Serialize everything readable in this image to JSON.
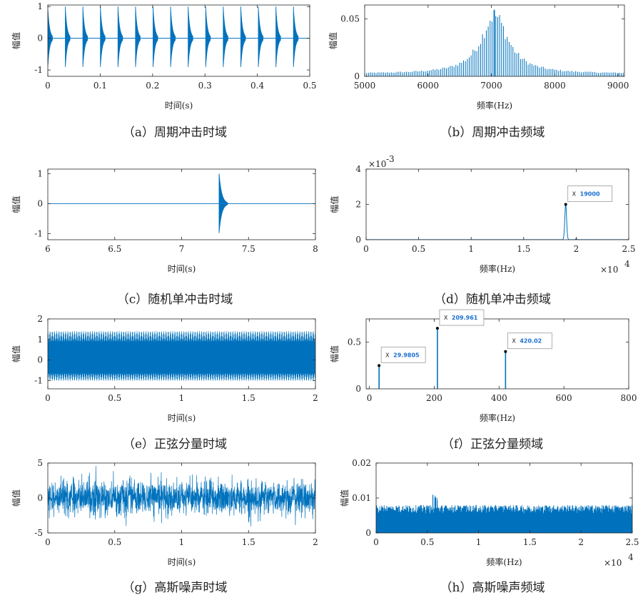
{
  "colors": {
    "series": "#0072BD",
    "axis": "#262626",
    "datatip_text": "#1a6fd0"
  },
  "chart_data": [
    {
      "id": "a",
      "type": "line",
      "caption": "（a）周期冲击时域",
      "xlabel": "时间(s)",
      "ylabel": "幅值",
      "xlim": [
        0,
        0.5
      ],
      "ylim": [
        -1.2,
        1.05
      ],
      "xticks": [
        0,
        0.1,
        0.2,
        0.3,
        0.4,
        0.5
      ],
      "xtick_labels": [
        "0",
        "0.1",
        "0.2",
        "0.3",
        "0.4",
        "0.5"
      ],
      "yticks": [
        -1,
        0,
        1
      ],
      "ytick_labels": [
        "-1",
        "0",
        "1"
      ],
      "signal": {
        "kind": "periodic-impulse",
        "period": 0.0335,
        "first": 0.0,
        "amplitude": 0.95,
        "decay": 200
      }
    },
    {
      "id": "b",
      "type": "bar",
      "caption": "（b）周期冲击频域",
      "xlabel": "频率(Hz)",
      "ylabel": "幅值",
      "xlim": [
        5000,
        9100
      ],
      "ylim": [
        0,
        0.062
      ],
      "xticks": [
        5000,
        6000,
        7000,
        8000,
        9000
      ],
      "xtick_labels": [
        "5000",
        "6000",
        "7000",
        "8000",
        "9000"
      ],
      "yticks": [
        0,
        0.05
      ],
      "ytick_labels": [
        "0",
        "0.05"
      ],
      "signal": {
        "kind": "harmonic-comb",
        "center": 7050,
        "spacing": 30,
        "peak": 0.058,
        "width": 380,
        "floor": 0.0025
      }
    },
    {
      "id": "c",
      "type": "line",
      "caption": "（c）随机单冲击时域",
      "xlabel": "时间(s)",
      "ylabel": "幅值",
      "xlim": [
        6,
        8
      ],
      "ylim": [
        -1.2,
        1.15
      ],
      "xticks": [
        6,
        6.5,
        7,
        7.5,
        8
      ],
      "xtick_labels": [
        "6",
        "6.5",
        "7",
        "7.5",
        "8"
      ],
      "yticks": [
        -1,
        0,
        1
      ],
      "ytick_labels": [
        "-1",
        "0",
        "1"
      ],
      "signal": {
        "kind": "single-impulse",
        "at": 7.28,
        "amplitude": 1.0,
        "decay": 40
      }
    },
    {
      "id": "d",
      "type": "line",
      "caption": "（d）随机单冲击频域",
      "xlabel": "频率(Hz)",
      "ylabel": "幅值",
      "xlim": [
        0,
        2.5
      ],
      "ylim": [
        0,
        4
      ],
      "x_exponent": "×10",
      "x_exponent_power": "4",
      "y_exponent": "×10",
      "y_exponent_power": "-3",
      "xticks": [
        0,
        0.5,
        1,
        1.5,
        2,
        2.5
      ],
      "xtick_labels": [
        "0",
        "0.5",
        "1",
        "1.5",
        "2",
        "2.5"
      ],
      "yticks": [
        0,
        2,
        4
      ],
      "ytick_labels": [
        "0",
        "2",
        "4"
      ],
      "signal": {
        "kind": "single-peak",
        "center": 1.9,
        "peak": 2.0,
        "width": 0.012,
        "secondary": [
          2.0,
          0.05
        ]
      },
      "datatips": [
        {
          "x": 1.9,
          "y": 2.0,
          "label": "19000"
        }
      ]
    },
    {
      "id": "e",
      "type": "line",
      "caption": "（e）正弦分量时域",
      "xlabel": "时间(s)",
      "ylabel": "幅值",
      "xlim": [
        0,
        2
      ],
      "ylim": [
        -1.4,
        2
      ],
      "xticks": [
        0,
        0.5,
        1,
        1.5,
        2
      ],
      "xtick_labels": [
        "0",
        "0.5",
        "1",
        "1.5",
        "2"
      ],
      "yticks": [
        -1,
        0,
        1,
        2
      ],
      "ytick_labels": [
        "-1",
        "0",
        "1",
        "2"
      ],
      "signal": {
        "kind": "sine-sum",
        "envelope_low": 0.9,
        "envelope_high": 1.4,
        "beat_count": 60
      }
    },
    {
      "id": "f",
      "type": "bar",
      "caption": "（f）正弦分量频域",
      "xlabel": "频率(Hz)",
      "ylabel": "幅值",
      "xlim": [
        -10,
        800
      ],
      "ylim": [
        0,
        0.75
      ],
      "xticks": [
        0,
        200,
        400,
        600,
        800
      ],
      "xtick_labels": [
        "0",
        "200",
        "400",
        "600",
        "800"
      ],
      "yticks": [
        0,
        0.5
      ],
      "ytick_labels": [
        "0",
        "0.5"
      ],
      "x": [
        29.9805,
        209.961,
        420.02
      ],
      "y": [
        0.25,
        0.65,
        0.4
      ],
      "datatips": [
        {
          "x": 29.9805,
          "y": 0.25,
          "label": "29.9805"
        },
        {
          "x": 209.961,
          "y": 0.65,
          "label": "209.961"
        },
        {
          "x": 420.02,
          "y": 0.4,
          "label": "420.02"
        }
      ]
    },
    {
      "id": "g",
      "type": "line",
      "caption": "（g）高斯噪声时域",
      "xlabel": "时间(s)",
      "ylabel": "幅值",
      "xlim": [
        0,
        2
      ],
      "ylim": [
        -5,
        5
      ],
      "xticks": [
        0,
        0.5,
        1,
        1.5,
        2
      ],
      "xtick_labels": [
        "0",
        "0.5",
        "1",
        "1.5",
        "2"
      ],
      "yticks": [
        -5,
        0,
        5
      ],
      "ytick_labels": [
        "-5",
        "0",
        "5"
      ],
      "signal": {
        "kind": "gaussian-noise",
        "sigma": 1.2
      }
    },
    {
      "id": "h",
      "type": "area",
      "caption": "（h）高斯噪声频域",
      "xlabel": "频率(Hz)",
      "ylabel": "幅值",
      "xlim": [
        0,
        2.5
      ],
      "ylim": [
        0,
        0.02
      ],
      "x_exponent": "×10",
      "x_exponent_power": "4",
      "xticks": [
        0,
        0.5,
        1,
        1.5,
        2,
        2.5
      ],
      "xtick_labels": [
        "0",
        "0.5",
        "1",
        "1.5",
        "2",
        "2.5"
      ],
      "yticks": [
        0,
        0.01,
        0.02
      ],
      "ytick_labels": [
        "0",
        "0.01",
        "0.02"
      ],
      "signal": {
        "kind": "noise-spectrum",
        "mean": 0.0065,
        "spread": 0.0025
      }
    }
  ]
}
